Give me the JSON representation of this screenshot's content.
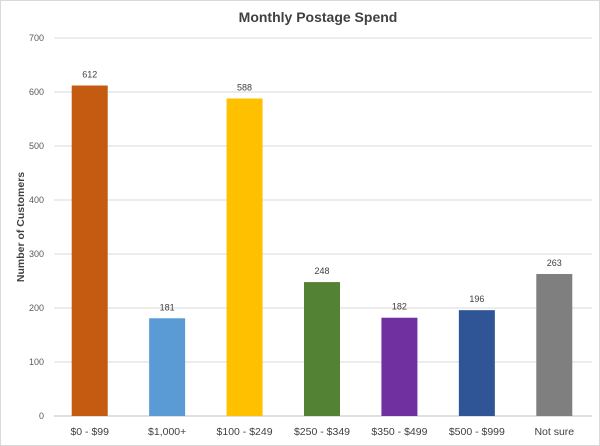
{
  "chart_data": {
    "type": "bar",
    "title": "Monthly Postage Spend",
    "xlabel": "",
    "ylabel": "Number of Customers",
    "categories": [
      "$0 - $99",
      "$1,000+",
      "$100 - $249",
      "$250 - $349",
      "$350 - $499",
      "$500 - $999",
      "Not sure"
    ],
    "values": [
      612,
      181,
      588,
      248,
      182,
      196,
      263
    ],
    "colors": [
      "#c55a11",
      "#5b9bd5",
      "#ffc000",
      "#548235",
      "#7030a0",
      "#2f5597",
      "#7f7f7f"
    ],
    "ylim": [
      0,
      700
    ],
    "yticks": [
      0,
      100,
      200,
      300,
      400,
      500,
      600,
      700
    ],
    "grid": true,
    "legend": "none",
    "data_labels": true
  }
}
